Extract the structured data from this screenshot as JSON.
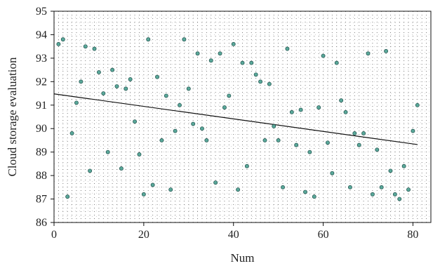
{
  "chart_data": {
    "type": "scatter",
    "title": "",
    "xlabel": "Num",
    "ylabel": "Cloud storage evaluation",
    "xlim": [
      0,
      84
    ],
    "ylim": [
      86,
      95
    ],
    "x_ticks": [
      0,
      20,
      40,
      60,
      80
    ],
    "y_ticks": [
      86,
      87,
      88,
      89,
      90,
      91,
      92,
      93,
      94,
      95
    ],
    "grid": "dotted",
    "colors": {
      "marker_fill": "#5aa89a",
      "marker_edge": "#1f4f4a",
      "trend_line": "#111111",
      "grid": "#333333"
    },
    "series": [
      {
        "points": [
          [
            1,
            93.6
          ],
          [
            2,
            93.8
          ],
          [
            3,
            87.1
          ],
          [
            4,
            89.8
          ],
          [
            5,
            91.1
          ],
          [
            6,
            92.0
          ],
          [
            7,
            93.5
          ],
          [
            8,
            88.2
          ],
          [
            9,
            93.4
          ],
          [
            10,
            92.4
          ],
          [
            11,
            91.5
          ],
          [
            12,
            89.0
          ],
          [
            13,
            92.5
          ],
          [
            14,
            91.8
          ],
          [
            15,
            88.3
          ],
          [
            16,
            91.7
          ],
          [
            17,
            92.1
          ],
          [
            18,
            90.3
          ],
          [
            19,
            88.9
          ],
          [
            20,
            87.2
          ],
          [
            21,
            93.8
          ],
          [
            22,
            87.6
          ],
          [
            23,
            92.2
          ],
          [
            24,
            89.5
          ],
          [
            25,
            91.4
          ],
          [
            26,
            87.4
          ],
          [
            27,
            89.9
          ],
          [
            28,
            91.0
          ],
          [
            29,
            93.8
          ],
          [
            30,
            91.7
          ],
          [
            31,
            90.2
          ],
          [
            32,
            93.2
          ],
          [
            33,
            90.0
          ],
          [
            34,
            89.5
          ],
          [
            35,
            92.9
          ],
          [
            36,
            87.7
          ],
          [
            37,
            93.2
          ],
          [
            38,
            90.9
          ],
          [
            39,
            91.4
          ],
          [
            40,
            93.6
          ],
          [
            41,
            87.4
          ],
          [
            42,
            92.8
          ],
          [
            43,
            88.4
          ],
          [
            44,
            92.8
          ],
          [
            45,
            92.3
          ],
          [
            46,
            92.0
          ],
          [
            47,
            89.5
          ],
          [
            48,
            91.9
          ],
          [
            49,
            90.1
          ],
          [
            50,
            89.5
          ],
          [
            51,
            87.5
          ],
          [
            52,
            93.4
          ],
          [
            53,
            90.7
          ],
          [
            54,
            89.3
          ],
          [
            55,
            90.8
          ],
          [
            56,
            87.3
          ],
          [
            57,
            89.0
          ],
          [
            58,
            87.1
          ],
          [
            59,
            90.9
          ],
          [
            60,
            93.1
          ],
          [
            61,
            89.4
          ],
          [
            62,
            88.1
          ],
          [
            63,
            92.8
          ],
          [
            64,
            91.2
          ],
          [
            65,
            90.7
          ],
          [
            66,
            87.5
          ],
          [
            67,
            89.8
          ],
          [
            68,
            89.3
          ],
          [
            69,
            89.8
          ],
          [
            70,
            93.2
          ],
          [
            71,
            87.2
          ],
          [
            72,
            89.1
          ],
          [
            73,
            87.5
          ],
          [
            74,
            93.3
          ],
          [
            75,
            88.2
          ],
          [
            76,
            87.2
          ],
          [
            77,
            87.0
          ],
          [
            78,
            88.4
          ],
          [
            79,
            87.4
          ],
          [
            80,
            89.9
          ],
          [
            81,
            91.0
          ]
        ]
      }
    ],
    "trend_line": {
      "x": [
        0,
        81
      ],
      "y": [
        91.48,
        89.32
      ]
    }
  }
}
